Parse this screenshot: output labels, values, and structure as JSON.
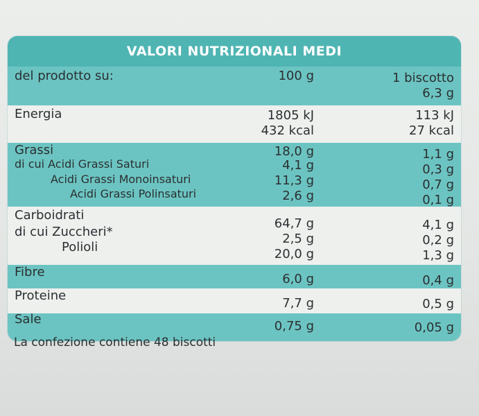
{
  "table": {
    "title": "VALORI NUTRIZIONALI MEDI",
    "per_label": "del prodotto su:",
    "col_100g": "100 g",
    "col_portion_line1": "1 biscotto",
    "col_portion_line2": "6,3 g",
    "energy": {
      "label": "Energia",
      "kj_100": "1805 kJ",
      "kcal_100": "432 kcal",
      "kj_portion": "113 kJ",
      "kcal_portion": "27 kcal"
    },
    "fats": {
      "label": "Grassi",
      "value_100": "18,0 g",
      "value_portion": "1,1 g",
      "saturated_label": "di cui Acidi Grassi Saturi",
      "saturated_100": "4,1 g",
      "saturated_portion": "0,3 g",
      "mono_label": "Acidi Grassi Monoinsaturi",
      "mono_100": "11,3 g",
      "mono_portion": "0,7 g",
      "poly_label": "Acidi Grassi Polinsaturi",
      "poly_100": "2,6 g",
      "poly_portion": "0,1 g"
    },
    "carbs": {
      "label": "Carboidrati",
      "value_100": "64,7 g",
      "value_portion": "4,1 g",
      "sugars_label": "di cui Zuccheri*",
      "sugars_100": "2,5 g",
      "sugars_portion": "0,2 g",
      "polyols_label": "Polioli",
      "polyols_100": "20,0 g",
      "polyols_portion": "1,3 g"
    },
    "fibre": {
      "label": "Fibre",
      "value_100": "6,0 g",
      "value_portion": "0,4 g"
    },
    "protein": {
      "label": "Proteine",
      "value_100": "7,7 g",
      "value_portion": "0,5 g"
    },
    "salt": {
      "label": "Sale",
      "value_100": "0,75 g",
      "value_portion": "0,05 g"
    }
  },
  "footer": "La confezione contiene 48 biscotti",
  "colors": {
    "teal_header": "#4fb5b3",
    "teal_row": "#6cc4c2",
    "light_row": "#eef0ee"
  }
}
